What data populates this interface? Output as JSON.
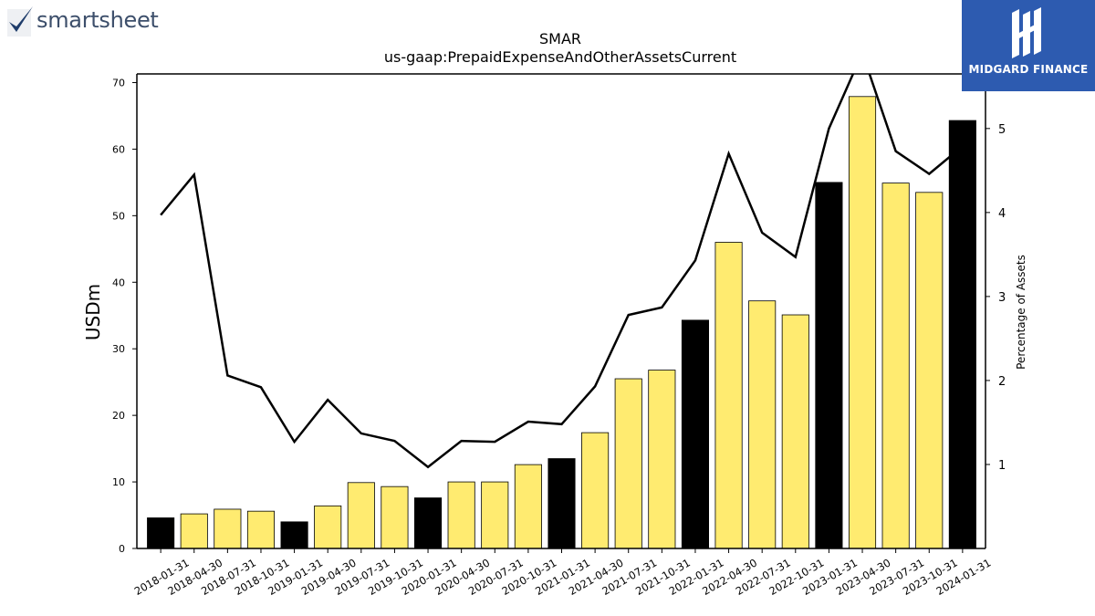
{
  "logos": {
    "left_text": "smartsheet",
    "right_text": "MIDGARD FINANCE",
    "right_bg": "#2d5bb0"
  },
  "colors": {
    "bar_highlight": "#000000",
    "bar_normal": "#ffeb70",
    "line": "#000000"
  },
  "chart_data": {
    "type": "bar",
    "title": "SMAR",
    "subtitle": "us-gaap:PrepaidExpenseAndOtherAssetsCurrent",
    "ylabel": "USDm",
    "y2label": "Percentage of Assets",
    "ylim": [
      0,
      71.3
    ],
    "y2lim": [
      0.0,
      5.65
    ],
    "yticks": [
      0,
      10,
      20,
      30,
      40,
      50,
      60,
      70
    ],
    "y2ticks": [
      1,
      2,
      3,
      4,
      5
    ],
    "categories": [
      "2018-01-31",
      "2018-04-30",
      "2018-07-31",
      "2018-10-31",
      "2019-01-31",
      "2019-04-30",
      "2019-07-31",
      "2019-10-31",
      "2020-01-31",
      "2020-04-30",
      "2020-07-31",
      "2020-10-31",
      "2021-01-31",
      "2021-04-30",
      "2021-07-31",
      "2021-10-31",
      "2022-01-31",
      "2022-04-30",
      "2022-07-31",
      "2022-10-31",
      "2023-01-31",
      "2023-04-30",
      "2023-07-31",
      "2023-10-31",
      "2024-01-31"
    ],
    "series": [
      {
        "type": "bar",
        "values": [
          4.6,
          5.2,
          5.9,
          5.6,
          4.0,
          6.4,
          9.9,
          9.3,
          7.6,
          10.0,
          10.0,
          12.6,
          13.5,
          17.4,
          25.5,
          26.8,
          34.3,
          46.0,
          37.2,
          35.1,
          55.0,
          67.9,
          54.9,
          53.5,
          64.3
        ],
        "highlight": [
          true,
          false,
          false,
          false,
          true,
          false,
          false,
          false,
          true,
          false,
          false,
          false,
          true,
          false,
          false,
          false,
          true,
          false,
          false,
          false,
          true,
          false,
          false,
          false,
          true
        ]
      },
      {
        "type": "line",
        "axis": "right",
        "values": [
          3.97,
          4.45,
          2.06,
          1.92,
          1.27,
          1.77,
          1.37,
          1.28,
          0.97,
          1.28,
          1.27,
          1.51,
          1.48,
          1.93,
          2.78,
          2.87,
          3.43,
          4.7,
          3.76,
          3.47,
          5.0,
          5.9,
          4.73,
          4.46,
          4.79
        ]
      }
    ],
    "grid": false
  }
}
